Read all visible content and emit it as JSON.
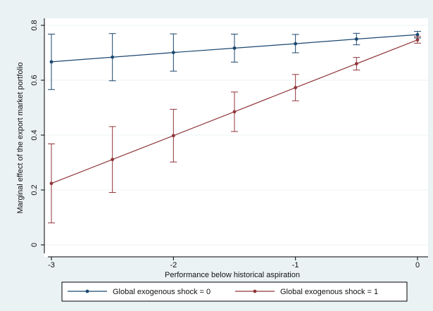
{
  "chart_data": {
    "type": "line",
    "xlabel": "Performance below historical aspiration",
    "ylabel": "Marginal effect of the export market portfolio",
    "xlim": [
      -3,
      0
    ],
    "ylim": [
      0,
      0.8
    ],
    "x_ticks": [
      -3,
      -2,
      -1,
      0
    ],
    "y_ticks": [
      0,
      0.2,
      0.4,
      0.6,
      0.8
    ],
    "x": [
      -3,
      -2.5,
      -2,
      -1.5,
      -1,
      -0.5,
      0
    ],
    "grid": "horizontal",
    "legend_position": "bottom",
    "series": [
      {
        "name": "Global exogenous shock = 0",
        "color": "#1a476f",
        "values": [
          0.667,
          0.684,
          0.701,
          0.717,
          0.733,
          0.75,
          0.766
        ],
        "ci_low": [
          0.566,
          0.598,
          0.633,
          0.666,
          0.7,
          0.729,
          0.754
        ],
        "ci_high": [
          0.768,
          0.77,
          0.769,
          0.768,
          0.767,
          0.771,
          0.778
        ]
      },
      {
        "name": "Global exogenous shock = 1",
        "color": "#90353b",
        "values": [
          0.224,
          0.311,
          0.398,
          0.485,
          0.573,
          0.66,
          0.747
        ],
        "ci_low": [
          0.08,
          0.191,
          0.302,
          0.413,
          0.525,
          0.637,
          0.735
        ],
        "ci_high": [
          0.368,
          0.431,
          0.494,
          0.557,
          0.621,
          0.683,
          0.759
        ]
      }
    ]
  }
}
